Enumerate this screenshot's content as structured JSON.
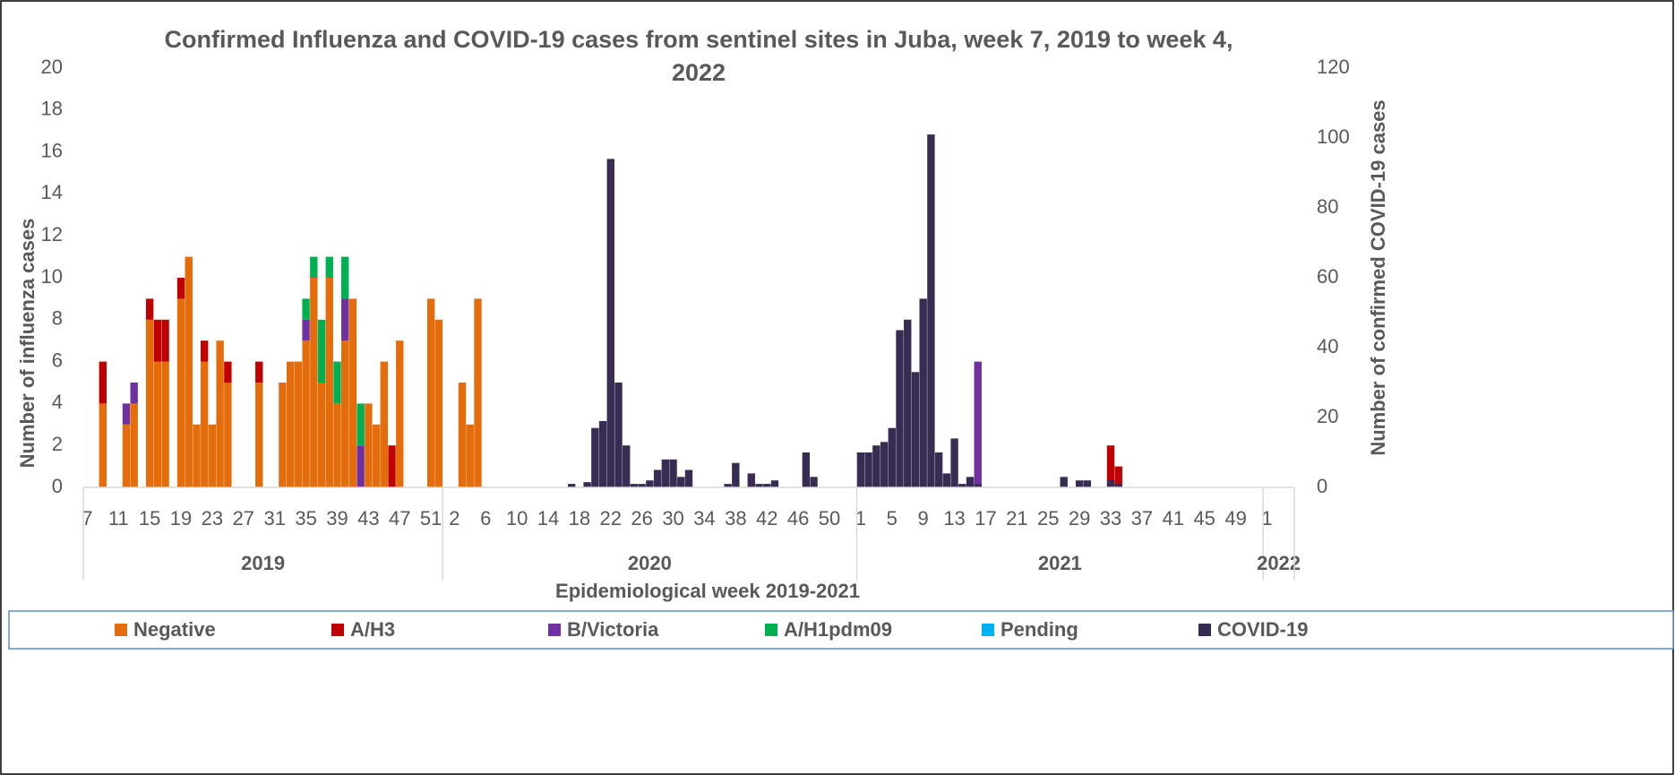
{
  "chart_data": {
    "type": "bar",
    "stacked": true,
    "title": "Confirmed Influenza and COVID-19 cases from sentinel sites in Juba, week 7, 2019 to week 4, 2022",
    "x_label": "Epidemiological week 2019-2021",
    "y_label": "Number of influenza cases",
    "y2_label": "Number of confirmed COVID-19 cases",
    "legend": "bottom",
    "grid": false,
    "categories": [
      "7",
      null,
      null,
      null,
      "11",
      null,
      null,
      null,
      "15",
      null,
      null,
      null,
      "19",
      null,
      null,
      null,
      "23",
      null,
      null,
      null,
      "27",
      null,
      null,
      null,
      "31",
      null,
      null,
      null,
      "35",
      null,
      null,
      null,
      "39",
      null,
      null,
      null,
      "43",
      null,
      null,
      null,
      "47",
      null,
      null,
      null,
      "51",
      null,
      null,
      "2",
      null,
      null,
      null,
      "6",
      null,
      null,
      null,
      "10",
      null,
      null,
      null,
      "14",
      null,
      null,
      null,
      "18",
      null,
      null,
      null,
      "22",
      null,
      null,
      null,
      "26",
      null,
      null,
      null,
      "30",
      null,
      null,
      null,
      "34",
      null,
      null,
      null,
      "38",
      null,
      null,
      null,
      "42",
      null,
      null,
      null,
      "46",
      null,
      null,
      null,
      "50",
      null,
      null,
      null,
      "1",
      null,
      null,
      null,
      "5",
      null,
      null,
      null,
      "9",
      null,
      null,
      null,
      "13",
      null,
      null,
      null,
      "17",
      null,
      null,
      null,
      "21",
      null,
      null,
      null,
      "25",
      null,
      null,
      null,
      "29",
      null,
      null,
      null,
      "33",
      null,
      null,
      null,
      "37",
      null,
      null,
      null,
      "41",
      null,
      null,
      null,
      "45",
      null,
      null,
      null,
      "49",
      null,
      null,
      null,
      "1",
      null,
      null,
      null
    ],
    "category_groups": [
      {
        "label": "2019",
        "count": 46
      },
      {
        "label": "2020",
        "count": 53
      },
      {
        "label": "2021",
        "count": 52
      },
      {
        "label": "2022",
        "count": 4
      }
    ],
    "ylim": [
      0,
      20
    ],
    "yticks": [
      0,
      2,
      4,
      6,
      8,
      10,
      12,
      14,
      16,
      18,
      20
    ],
    "y2lim": [
      0,
      120
    ],
    "y2ticks": [
      0,
      20,
      40,
      60,
      80,
      100,
      120
    ],
    "series": [
      {
        "name": "Negative",
        "color": "#e46c0a",
        "values": [
          0,
          0,
          4,
          0,
          0,
          3,
          4,
          0,
          8,
          6,
          6,
          0,
          9,
          11,
          3,
          6,
          3,
          7,
          5,
          0,
          0,
          0,
          5,
          0,
          0,
          5,
          6,
          6,
          7,
          10,
          5,
          10,
          4,
          7,
          9,
          0,
          4,
          3,
          6,
          0,
          7,
          0,
          0,
          0,
          9,
          8,
          0,
          0,
          5,
          3,
          9,
          0,
          0,
          0,
          0,
          0,
          0,
          0,
          0,
          0,
          0,
          0,
          0,
          0,
          0,
          0,
          0,
          0,
          0,
          0,
          0,
          0,
          0,
          0,
          0,
          0,
          0,
          0,
          0,
          0,
          0,
          0,
          0,
          0,
          0,
          0,
          0,
          0,
          0,
          0,
          0,
          0,
          0,
          0,
          0,
          0,
          0,
          0,
          0,
          0,
          0,
          0,
          0,
          0,
          0,
          0,
          0,
          0,
          0,
          0,
          0,
          0,
          0,
          0,
          0,
          0,
          0,
          0,
          0,
          0,
          0,
          0,
          0,
          0,
          0,
          0,
          0,
          0,
          0,
          0,
          0,
          0,
          0,
          0,
          0,
          0,
          0,
          0,
          0,
          0,
          0,
          0,
          0,
          0,
          0,
          0,
          0,
          0,
          0,
          0,
          0,
          0,
          0,
          0,
          0
        ]
      },
      {
        "name": "A/H3",
        "color": "#c00000",
        "values": [
          0,
          0,
          2,
          0,
          0,
          0,
          0,
          0,
          1,
          2,
          2,
          0,
          1,
          0,
          0,
          1,
          0,
          0,
          1,
          0,
          0,
          0,
          1,
          0,
          0,
          0,
          0,
          0,
          0,
          0,
          0,
          0,
          0,
          0,
          0,
          0,
          0,
          0,
          0,
          2,
          0,
          0,
          0,
          0,
          0,
          0,
          0,
          0,
          0,
          0,
          0,
          0,
          0,
          0,
          0,
          0,
          0,
          0,
          0,
          0,
          0,
          0,
          0,
          0,
          0,
          0,
          0,
          0,
          0,
          0,
          0,
          0,
          0,
          0,
          0,
          0,
          0,
          0,
          0,
          0,
          0,
          0,
          0,
          0,
          0,
          0,
          0,
          0,
          0,
          0,
          0,
          0,
          0,
          0,
          0,
          0,
          0,
          0,
          0,
          0,
          0,
          0,
          0,
          0,
          0,
          0,
          0,
          0,
          0,
          0,
          0,
          0,
          0,
          0,
          0,
          0,
          0,
          0,
          0,
          0,
          0,
          0,
          0,
          0,
          0,
          0,
          0,
          0,
          0,
          0,
          0,
          2,
          1,
          0,
          0,
          0,
          0,
          0,
          0,
          0,
          0,
          0,
          0,
          0,
          0,
          0,
          0,
          0,
          0,
          0,
          0,
          0,
          0,
          0,
          0
        ]
      },
      {
        "name": "B/Victoria",
        "color": "#7030a0",
        "values": [
          0,
          0,
          0,
          0,
          0,
          1,
          1,
          0,
          0,
          0,
          0,
          0,
          0,
          0,
          0,
          0,
          0,
          0,
          0,
          0,
          0,
          0,
          0,
          0,
          0,
          0,
          0,
          0,
          1,
          0,
          0,
          0,
          0,
          2,
          0,
          2,
          0,
          0,
          0,
          0,
          0,
          0,
          0,
          0,
          0,
          0,
          0,
          0,
          0,
          0,
          0,
          0,
          0,
          0,
          0,
          0,
          0,
          0,
          0,
          0,
          0,
          0,
          0,
          0,
          0,
          0,
          0,
          0,
          0,
          0,
          0,
          0,
          0,
          0,
          0,
          0,
          0,
          0,
          0,
          0,
          0,
          0,
          0,
          0,
          0,
          0,
          0,
          0,
          0,
          0,
          0,
          0,
          0,
          0,
          0,
          0,
          0,
          0,
          0,
          0,
          0,
          0,
          0,
          0,
          0,
          0,
          0,
          0,
          0,
          0,
          0,
          0,
          0,
          0,
          6,
          0,
          0,
          0,
          0,
          0,
          0,
          0,
          0,
          0,
          0,
          0,
          0,
          0,
          0,
          0,
          0,
          0,
          0,
          0,
          0,
          0,
          0,
          0,
          0,
          0,
          0,
          0,
          0,
          0,
          0,
          0,
          0,
          0,
          0,
          0,
          0,
          0,
          0,
          0,
          0
        ]
      },
      {
        "name": "A/H1pdm09",
        "color": "#00b050",
        "values": [
          0,
          0,
          0,
          0,
          0,
          0,
          0,
          0,
          0,
          0,
          0,
          0,
          0,
          0,
          0,
          0,
          0,
          0,
          0,
          0,
          0,
          0,
          0,
          0,
          0,
          0,
          0,
          0,
          1,
          1,
          3,
          1,
          2,
          2,
          0,
          2,
          0,
          0,
          0,
          0,
          0,
          0,
          0,
          0,
          0,
          0,
          0,
          0,
          0,
          0,
          0,
          0,
          0,
          0,
          0,
          0,
          0,
          0,
          0,
          0,
          0,
          0,
          0,
          0,
          0,
          0,
          0,
          0,
          0,
          0,
          0,
          0,
          0,
          0,
          0,
          0,
          0,
          0,
          0,
          0,
          0,
          0,
          0,
          0,
          0,
          0,
          0,
          0,
          0,
          0,
          0,
          0,
          0,
          0,
          0,
          0,
          0,
          0,
          0,
          0,
          0,
          0,
          0,
          0,
          0,
          0,
          0,
          0,
          0,
          0,
          0,
          0,
          0,
          0,
          0,
          0,
          0,
          0,
          0,
          0,
          0,
          0,
          0,
          0,
          0,
          0,
          0,
          0,
          0,
          0,
          0,
          0,
          0,
          0,
          0,
          0,
          0,
          0,
          0,
          0,
          0,
          0,
          0,
          0,
          0,
          0,
          0,
          0,
          0,
          0,
          0,
          0,
          0,
          0,
          0
        ]
      },
      {
        "name": "Pending",
        "color": "#00b0f0",
        "values": [
          0,
          0,
          0,
          0,
          0,
          0,
          0,
          0,
          0,
          0,
          0,
          0,
          0,
          0,
          0,
          0,
          0,
          0,
          0,
          0,
          0,
          0,
          0,
          0,
          0,
          0,
          0,
          0,
          0,
          0,
          0,
          0,
          0,
          0,
          0,
          0,
          0,
          0,
          0,
          0,
          0,
          0,
          0,
          0,
          0,
          0,
          0,
          0,
          0,
          0,
          0,
          0,
          0,
          0,
          0,
          0,
          0,
          0,
          0,
          0,
          0,
          0,
          0,
          0,
          0,
          0,
          0,
          0,
          0,
          0,
          0,
          0,
          0,
          0,
          0,
          0,
          0,
          0,
          0,
          0,
          0,
          0,
          0,
          0,
          0,
          0,
          0,
          0,
          0,
          0,
          0,
          0,
          0,
          0,
          0,
          0,
          0,
          0,
          0,
          0,
          0,
          0,
          0,
          0,
          0,
          0,
          0,
          0,
          0,
          0,
          0,
          0,
          0,
          0,
          0,
          0,
          0,
          0,
          0,
          0,
          0,
          0,
          0,
          0,
          0,
          0,
          0,
          0,
          0,
          0,
          0,
          0,
          0,
          0,
          0,
          0,
          0,
          0,
          0,
          0,
          0,
          0,
          0,
          0,
          0,
          0,
          0,
          0,
          0,
          0,
          0,
          0,
          0,
          0,
          0
        ]
      },
      {
        "name": "COVID-19",
        "color": "#382c52",
        "axis": "y2",
        "values": [
          0,
          0,
          0,
          0,
          0,
          0,
          0,
          0,
          0,
          0,
          0,
          0,
          0,
          0,
          0,
          0,
          0,
          0,
          0,
          0,
          0,
          0,
          0,
          0,
          0,
          0,
          0,
          0,
          0,
          0,
          0,
          0,
          0,
          0,
          0,
          0,
          0,
          0,
          0,
          0,
          0,
          0,
          0,
          0,
          0,
          0,
          0,
          0,
          0,
          0,
          0,
          0,
          0,
          0,
          0,
          0,
          0,
          0,
          0,
          0,
          0,
          0,
          1,
          0,
          1.5,
          17,
          19,
          94,
          30,
          12,
          1,
          1,
          2,
          5,
          8,
          8,
          3,
          5,
          0,
          0,
          0,
          0,
          1,
          7,
          0,
          4,
          1,
          1,
          2,
          0,
          0,
          0,
          10,
          3,
          0,
          0,
          0,
          0,
          0,
          10,
          10,
          12,
          13,
          17,
          45,
          48,
          33,
          54,
          101,
          10,
          4,
          14,
          1,
          3,
          1,
          0,
          0,
          0,
          0,
          0,
          0,
          0,
          0,
          0,
          0,
          3,
          0,
          2,
          2,
          0,
          0,
          2,
          1,
          0,
          0,
          0,
          0,
          0,
          0,
          0,
          0,
          0,
          0,
          0,
          0,
          0,
          0,
          0,
          0,
          0,
          0,
          0,
          0,
          0,
          0
        ]
      }
    ]
  }
}
